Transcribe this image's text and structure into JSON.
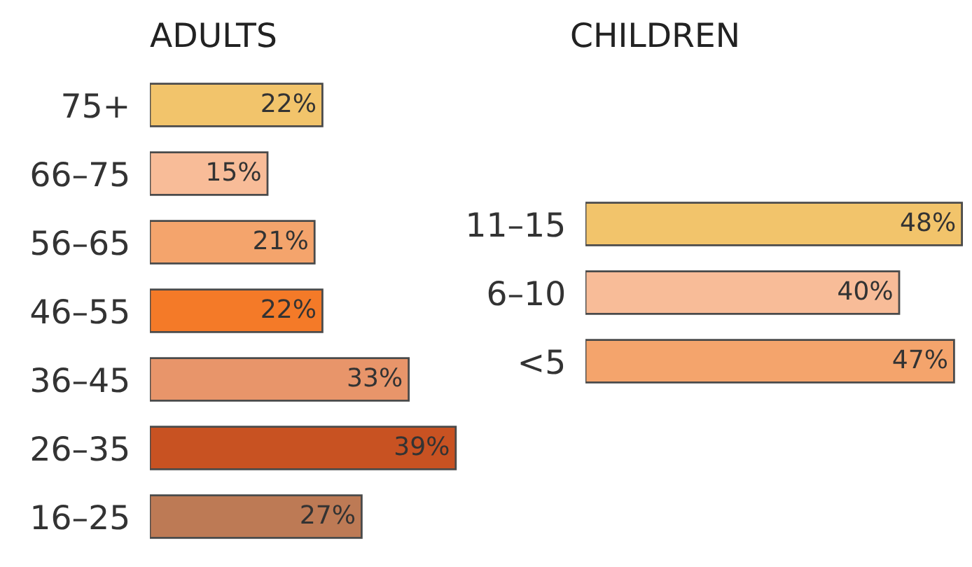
{
  "chart_data": [
    {
      "type": "bar",
      "orientation": "horizontal",
      "title": "ADULTS",
      "categories": [
        "75+",
        "66–75",
        "56–65",
        "46–55",
        "36–45",
        "26–35",
        "16–25"
      ],
      "values": [
        22,
        15,
        21,
        22,
        33,
        39,
        27
      ],
      "value_labels": [
        "22%",
        "15%",
        "21%",
        "22%",
        "33%",
        "39%",
        "27%"
      ],
      "colors": [
        "#f2c46b",
        "#f8bc98",
        "#f4a46c",
        "#f47a28",
        "#e8956a",
        "#c85222",
        "#bd7a55"
      ]
    },
    {
      "type": "bar",
      "orientation": "horizontal",
      "title": "CHILDREN",
      "categories": [
        "11–15",
        "6–10",
        "<5"
      ],
      "values": [
        48,
        40,
        47
      ],
      "value_labels": [
        "48%",
        "40%",
        "47%"
      ],
      "colors": [
        "#f2c46b",
        "#f8bc98",
        "#f4a46c"
      ]
    }
  ]
}
